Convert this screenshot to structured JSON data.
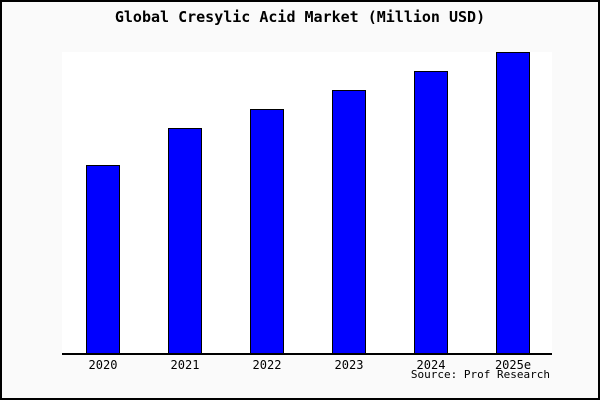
{
  "chart_data": {
    "type": "bar",
    "title": "Global Cresylic Acid Market (Million USD)",
    "categories": [
      "2020",
      "2021",
      "2022",
      "2023",
      "2024",
      "2025e"
    ],
    "values": [
      62.6,
      74.9,
      81.2,
      87.5,
      93.7,
      100
    ],
    "values_note": "No y-axis ticks or value labels are shown in the chart; values are relative bar heights normalized so 2025e = 100",
    "xlabel": "",
    "ylabel": "",
    "ylim": [
      0,
      100
    ],
    "grid": false,
    "legend": false,
    "bar_color": "#0000ff",
    "bar_border_color": "#000000",
    "plot_background": "#ffffff",
    "page_background": "#fafafa",
    "axis_line_color": "#000000"
  },
  "footer": {
    "source_label": "Source: Prof Research"
  }
}
